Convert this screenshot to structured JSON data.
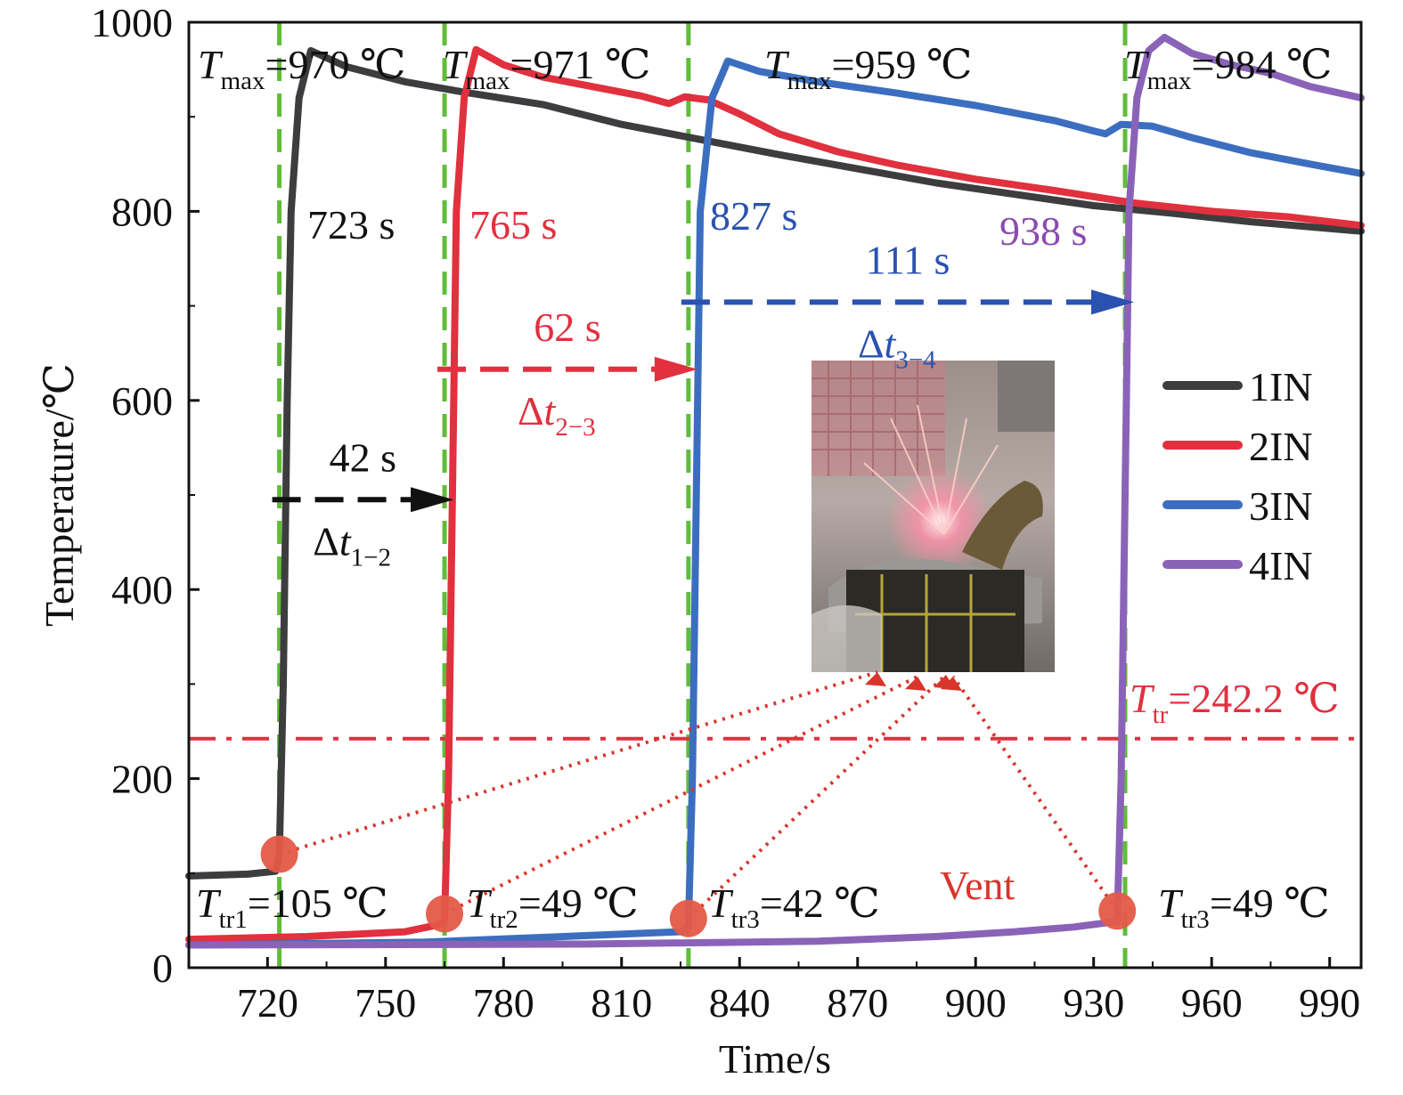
{
  "chart_data": {
    "type": "line",
    "xlabel": "Time/s",
    "ylabel": "Temperature/℃",
    "xlim": [
      700,
      998
    ],
    "ylim": [
      0,
      1000
    ],
    "xticks": [
      720,
      750,
      780,
      810,
      840,
      870,
      900,
      930,
      960,
      990
    ],
    "yticks": [
      0,
      200,
      400,
      600,
      800,
      1000
    ],
    "legend_position": "right",
    "series": [
      {
        "name": "1IN",
        "color": "#3d3d3f",
        "points": [
          [
            700,
            97
          ],
          [
            715,
            99
          ],
          [
            722,
            102
          ],
          [
            723,
            120
          ],
          [
            724,
            300
          ],
          [
            725,
            600
          ],
          [
            726,
            800
          ],
          [
            728,
            920
          ],
          [
            731,
            970
          ],
          [
            740,
            953
          ],
          [
            755,
            937
          ],
          [
            770,
            926
          ],
          [
            790,
            913
          ],
          [
            810,
            892
          ],
          [
            830,
            876
          ],
          [
            850,
            860
          ],
          [
            870,
            845
          ],
          [
            890,
            830
          ],
          [
            910,
            818
          ],
          [
            930,
            806
          ],
          [
            950,
            798
          ],
          [
            970,
            789
          ],
          [
            998,
            779
          ]
        ]
      },
      {
        "name": "2IN",
        "color": "#e1303e",
        "points": [
          [
            700,
            30
          ],
          [
            730,
            33
          ],
          [
            755,
            38
          ],
          [
            763,
            45
          ],
          [
            765,
            49
          ],
          [
            766,
            200
          ],
          [
            767,
            500
          ],
          [
            768,
            800
          ],
          [
            770,
            920
          ],
          [
            773,
            971
          ],
          [
            780,
            955
          ],
          [
            790,
            942
          ],
          [
            805,
            930
          ],
          [
            815,
            922
          ],
          [
            822,
            914
          ],
          [
            826,
            921
          ],
          [
            832,
            918
          ],
          [
            840,
            903
          ],
          [
            850,
            882
          ],
          [
            865,
            863
          ],
          [
            880,
            849
          ],
          [
            900,
            834
          ],
          [
            920,
            822
          ],
          [
            940,
            809
          ],
          [
            960,
            800
          ],
          [
            980,
            794
          ],
          [
            998,
            785
          ]
        ]
      },
      {
        "name": "3IN",
        "color": "#3c6ec0",
        "points": [
          [
            700,
            24
          ],
          [
            760,
            27
          ],
          [
            825,
            38
          ],
          [
            827,
            42
          ],
          [
            828,
            200
          ],
          [
            829,
            500
          ],
          [
            830,
            800
          ],
          [
            833,
            920
          ],
          [
            837,
            959
          ],
          [
            845,
            948
          ],
          [
            860,
            937
          ],
          [
            880,
            925
          ],
          [
            900,
            912
          ],
          [
            920,
            896
          ],
          [
            930,
            885
          ],
          [
            933,
            882
          ],
          [
            937,
            892
          ],
          [
            945,
            890
          ],
          [
            955,
            878
          ],
          [
            970,
            862
          ],
          [
            985,
            850
          ],
          [
            998,
            840
          ]
        ]
      },
      {
        "name": "4IN",
        "color": "#8a63b8",
        "points": [
          [
            700,
            24
          ],
          [
            800,
            25
          ],
          [
            860,
            28
          ],
          [
            890,
            33
          ],
          [
            910,
            38
          ],
          [
            925,
            43
          ],
          [
            936,
            49
          ],
          [
            937,
            200
          ],
          [
            938,
            500
          ],
          [
            939,
            800
          ],
          [
            941,
            920
          ],
          [
            944,
            970
          ],
          [
            948,
            984
          ],
          [
            955,
            967
          ],
          [
            965,
            955
          ],
          [
            975,
            946
          ],
          [
            985,
            932
          ],
          [
            998,
            920
          ]
        ]
      }
    ],
    "reference_lines": {
      "vertical_x": [
        723,
        765,
        827,
        938
      ],
      "vertical_color": "#5fbd3a",
      "threshold_y": 242.2,
      "threshold_color": "#e1303e"
    },
    "markers": [
      [
        723,
        120
      ],
      [
        765,
        57
      ],
      [
        827,
        52
      ],
      [
        936,
        60
      ]
    ],
    "marker_color": "#e45a48",
    "arrows": [
      {
        "label_top": "42 s",
        "label_bottom": "Δt",
        "sub": "1−2",
        "from_x": 723,
        "to_x": 765,
        "y": 495,
        "color": "#111111"
      },
      {
        "label_top": "62 s",
        "label_bottom": "Δt",
        "sub": "2−3",
        "from_x": 765,
        "to_x": 827,
        "y": 633,
        "color": "#e1303e"
      },
      {
        "label_top": "111 s",
        "label_bottom": "Δt",
        "sub": "3−4",
        "from_x": 827,
        "to_x": 938,
        "y": 704,
        "color": "#2b52b0"
      }
    ],
    "annotations": {
      "tmax": [
        {
          "sym": "T",
          "sub": "max",
          "value": "=970 ℃"
        },
        {
          "sym": "T",
          "sub": "max",
          "value": "=971 ℃"
        },
        {
          "sym": "T",
          "sub": "max",
          "value": "=959 ℃"
        },
        {
          "sym": "T",
          "sub": "max",
          "value": "=984 ℃"
        }
      ],
      "onset_times": [
        {
          "text": "723 s",
          "color": "#111111"
        },
        {
          "text": "765 s",
          "color": "#e1303e"
        },
        {
          "text": "827 s",
          "color": "#2b52b0"
        },
        {
          "text": "938 s",
          "color": "#8a4bb0"
        }
      ],
      "ttr": [
        {
          "sym": "T",
          "sub": "tr1",
          "value": "=105 ℃"
        },
        {
          "sym": "T",
          "sub": "tr2",
          "value": "=49 ℃"
        },
        {
          "sym": "T",
          "sub": "tr3",
          "value": "=42 ℃"
        },
        {
          "sym": "T",
          "sub": "tr3",
          "value": "=49 ℃"
        }
      ],
      "threshold_label": {
        "sym": "T",
        "sub": "tr",
        "value": "=242.2 ℃"
      },
      "vent": "Vent"
    }
  }
}
